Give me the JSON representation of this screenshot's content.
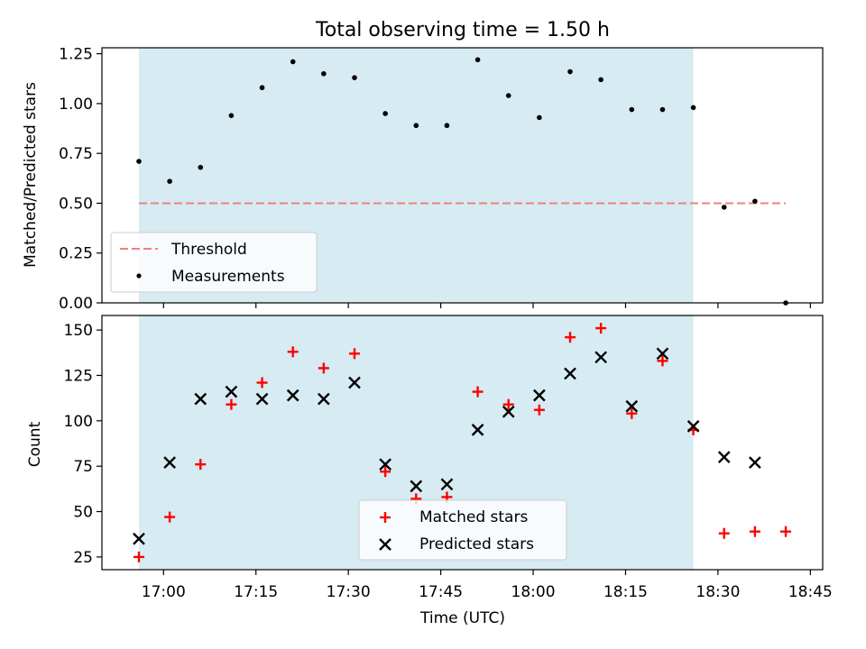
{
  "chart_data": [
    {
      "type": "scatter",
      "title": "Total observing time = 1.50 h",
      "xlabel": "",
      "ylabel": "Matched/Predicted stars",
      "xlim": [
        "16:50",
        "18:47"
      ],
      "ylim": [
        0,
        1.28
      ],
      "yticks": [
        "0.00",
        "0.25",
        "0.50",
        "0.75",
        "1.00",
        "1.25"
      ],
      "shaded_span": [
        "16:56",
        "18:26"
      ],
      "legend_position": "lower-left",
      "threshold": {
        "name": "Threshold",
        "value": 0.5,
        "x_from": "16:56",
        "x_to": "18:41"
      },
      "series": [
        {
          "name": "Measurements",
          "x": [
            "16:56",
            "17:01",
            "17:06",
            "17:11",
            "17:16",
            "17:21",
            "17:26",
            "17:31",
            "17:36",
            "17:41",
            "17:46",
            "17:51",
            "17:56",
            "18:01",
            "18:06",
            "18:11",
            "18:16",
            "18:21",
            "18:26",
            "18:31",
            "18:36",
            "18:41"
          ],
          "values": [
            0.71,
            0.61,
            0.68,
            0.94,
            1.08,
            1.21,
            1.15,
            1.13,
            0.95,
            0.89,
            0.89,
            1.22,
            1.04,
            0.93,
            1.16,
            1.12,
            0.97,
            0.97,
            0.98,
            0.48,
            0.51,
            0.0
          ]
        }
      ]
    },
    {
      "type": "scatter",
      "title": "",
      "xlabel": "Time (UTC)",
      "ylabel": "Count",
      "xlim": [
        "16:50",
        "18:47"
      ],
      "ylim": [
        18,
        158
      ],
      "yticks": [
        "25",
        "50",
        "75",
        "100",
        "125",
        "150"
      ],
      "xticks": [
        "17:00",
        "17:15",
        "17:30",
        "17:45",
        "18:00",
        "18:15",
        "18:30",
        "18:45"
      ],
      "shaded_span": [
        "16:56",
        "18:26"
      ],
      "legend_position": "lower-center",
      "x": [
        "16:56",
        "17:01",
        "17:06",
        "17:11",
        "17:16",
        "17:21",
        "17:26",
        "17:31",
        "17:36",
        "17:41",
        "17:46",
        "17:51",
        "17:56",
        "18:01",
        "18:06",
        "18:11",
        "18:16",
        "18:21",
        "18:26",
        "18:31",
        "18:36",
        "18:41"
      ],
      "series": [
        {
          "name": "Matched stars",
          "values": [
            25,
            47,
            76,
            109,
            121,
            138,
            129,
            137,
            72,
            57,
            58,
            116,
            109,
            106,
            146,
            151,
            104,
            133,
            95,
            38,
            39,
            39
          ]
        },
        {
          "name": "Predicted stars",
          "values": [
            35,
            77,
            112,
            116,
            112,
            114,
            112,
            121,
            76,
            64,
            65,
            95,
            105,
            114,
            126,
            135,
            108,
            137,
            97,
            80,
            77,
            null
          ]
        }
      ]
    }
  ],
  "colors": {
    "shade": "#add8e6",
    "threshold": "#f08080",
    "measurements": "#000000",
    "matched": "#ff0000",
    "predicted": "#000000"
  }
}
